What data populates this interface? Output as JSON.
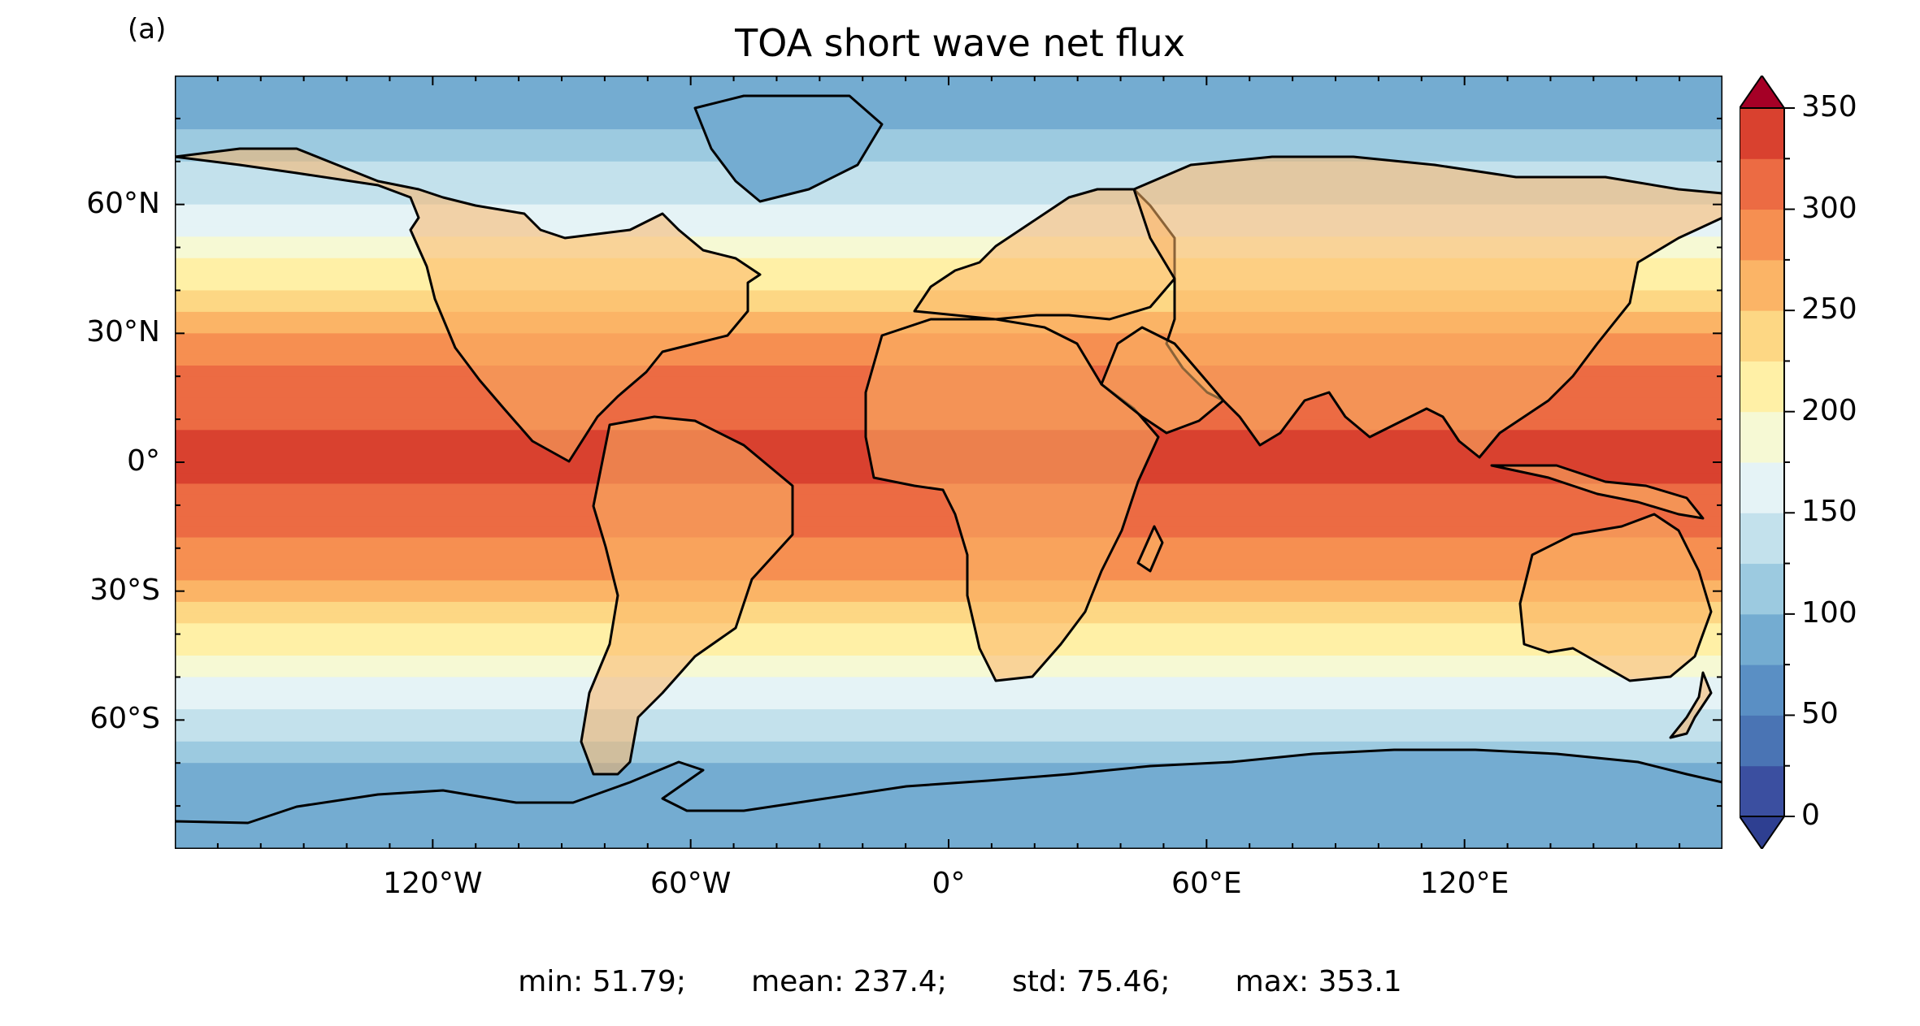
{
  "panel_label": "(a)",
  "title": "TOA short wave net flux",
  "axes": {
    "lat_ticks": [
      "60°N",
      "30°N",
      "0°",
      "30°S",
      "60°S"
    ],
    "lon_ticks": [
      "120°W",
      "60°W",
      "0°",
      "60°E",
      "120°E"
    ]
  },
  "colorbar": {
    "ticks": [
      "0",
      "50",
      "100",
      "150",
      "200",
      "250",
      "300",
      "350"
    ],
    "levels": [
      0,
      25,
      50,
      75,
      100,
      125,
      150,
      175,
      200,
      225,
      250,
      275,
      300,
      325,
      350
    ],
    "colors": [
      "#3b4fa0",
      "#4a74b4",
      "#5a8fc4",
      "#74acd1",
      "#9ccae0",
      "#c3e1ec",
      "#e5f3f6",
      "#f6f9d4",
      "#fff0a6",
      "#fdd784",
      "#fbb466",
      "#f68f51",
      "#ec6b43",
      "#d9412f",
      "#be1e2c"
    ],
    "extend_low": "#2e3f91",
    "extend_high": "#a50026"
  },
  "stats": {
    "min": "min: 51.79;",
    "mean": "mean: 237.4;",
    "std": "std: 75.46;",
    "max": "max: 353.1"
  },
  "chart_data": {
    "type": "heatmap",
    "title": "TOA short wave net flux",
    "xlabel": "",
    "ylabel": "",
    "xlim": [
      -180,
      180
    ],
    "ylim": [
      -90,
      90
    ],
    "colorbar_range": [
      0,
      350
    ],
    "zonal_mean_profile": {
      "lat": [
        90,
        80,
        75,
        70,
        65,
        60,
        55,
        50,
        45,
        40,
        35,
        30,
        25,
        20,
        15,
        10,
        5,
        0,
        -5,
        -10,
        -15,
        -20,
        -25,
        -30,
        -35,
        -40,
        -45,
        -50,
        -55,
        -60,
        -65,
        -70,
        -75,
        -80,
        -90
      ],
      "value": [
        90,
        95,
        110,
        125,
        140,
        150,
        165,
        185,
        205,
        230,
        255,
        275,
        295,
        305,
        315,
        320,
        330,
        335,
        325,
        315,
        305,
        295,
        285,
        265,
        240,
        215,
        195,
        175,
        160,
        140,
        120,
        100,
        85,
        80,
        80
      ]
    },
    "stats": {
      "min": 51.79,
      "mean": 237.4,
      "std": 75.46,
      "max": 353.1
    }
  }
}
